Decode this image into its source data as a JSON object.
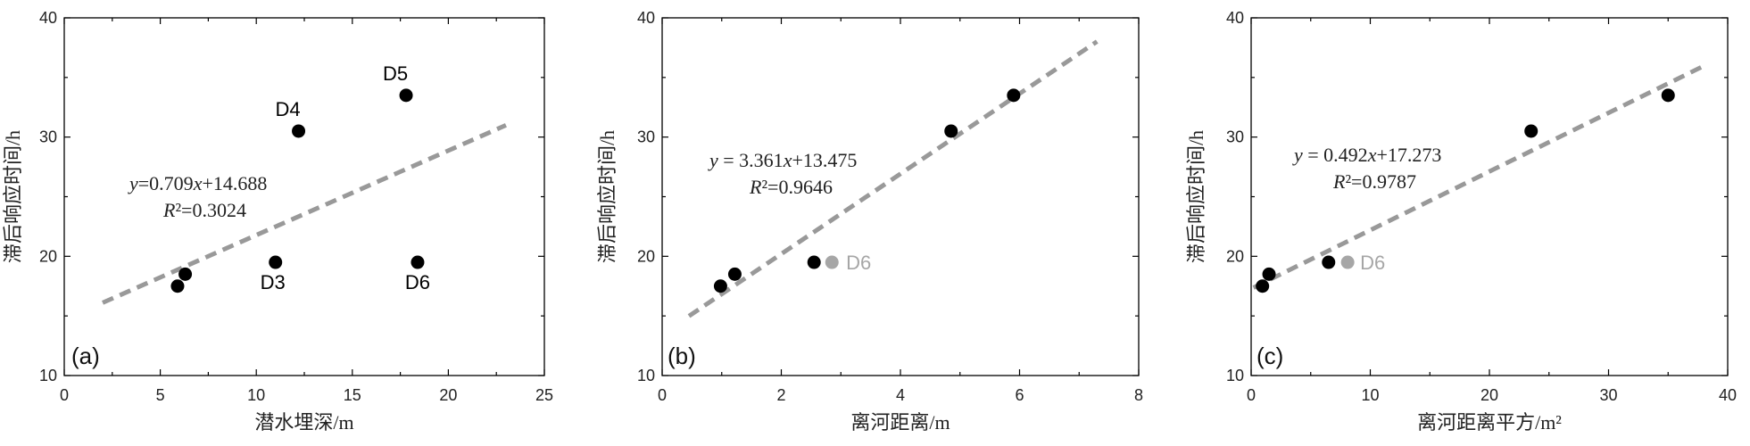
{
  "chart_data": [
    {
      "type": "scatter",
      "panel_label": "(a)",
      "xlabel": "潜水埋深/m",
      "ylabel": "滞后响应时间/h",
      "xlim": [
        0,
        25
      ],
      "ylim": [
        10,
        40
      ],
      "xticks": [
        0,
        5,
        10,
        15,
        20,
        25
      ],
      "yticks": [
        10,
        20,
        30,
        40
      ],
      "points": [
        {
          "x": 5.9,
          "y": 17.5,
          "label": "",
          "color": "#000000"
        },
        {
          "x": 6.3,
          "y": 18.5,
          "label": "",
          "color": "#000000"
        },
        {
          "x": 11.0,
          "y": 19.5,
          "label": "D3",
          "color": "#000000"
        },
        {
          "x": 12.2,
          "y": 30.5,
          "label": "D4",
          "color": "#000000"
        },
        {
          "x": 17.8,
          "y": 33.5,
          "label": "D5",
          "color": "#000000"
        },
        {
          "x": 18.4,
          "y": 19.5,
          "label": "D6",
          "color": "#000000"
        }
      ],
      "fit": {
        "slope": 0.709,
        "intercept": 14.688,
        "x_range": [
          2,
          23
        ]
      },
      "equation": {
        "y_var": "y",
        "eq_rest": "=0.709",
        "x_var": "x",
        "eq_tail": "+14.688",
        "r_var": "R",
        "r_rest": "²=0.3024"
      }
    },
    {
      "type": "scatter",
      "panel_label": "(b)",
      "xlabel": "离河距离/m",
      "ylabel": "滞后响应时间/h",
      "xlim": [
        0,
        8
      ],
      "ylim": [
        10,
        40
      ],
      "xticks": [
        0,
        2,
        4,
        6,
        8
      ],
      "yticks": [
        10,
        20,
        30,
        40
      ],
      "points": [
        {
          "x": 0.98,
          "y": 17.5,
          "label": "",
          "color": "#000000"
        },
        {
          "x": 1.22,
          "y": 18.5,
          "label": "",
          "color": "#000000"
        },
        {
          "x": 2.55,
          "y": 19.5,
          "label": "",
          "color": "#000000"
        },
        {
          "x": 2.85,
          "y": 19.5,
          "label": "D6",
          "color": "#a6a6a6"
        },
        {
          "x": 4.85,
          "y": 30.5,
          "label": "",
          "color": "#000000"
        },
        {
          "x": 5.9,
          "y": 33.5,
          "label": "",
          "color": "#000000"
        }
      ],
      "fit": {
        "slope": 3.361,
        "intercept": 13.475,
        "x_range": [
          0.45,
          7.3
        ]
      },
      "equation": {
        "y_var": "y",
        "eq_rest": " = 3.361",
        "x_var": "x",
        "eq_tail": "+13.475",
        "r_var": "R",
        "r_rest": "²=0.9646"
      }
    },
    {
      "type": "scatter",
      "panel_label": "(c)",
      "xlabel": "离河距离平方/m²",
      "ylabel": "滞后响应时间/h",
      "xlim": [
        0,
        40
      ],
      "ylim": [
        10,
        40
      ],
      "xticks": [
        0,
        10,
        20,
        30,
        40
      ],
      "yticks": [
        10,
        20,
        30,
        40
      ],
      "points": [
        {
          "x": 0.95,
          "y": 17.5,
          "label": "",
          "color": "#000000"
        },
        {
          "x": 1.5,
          "y": 18.5,
          "label": "",
          "color": "#000000"
        },
        {
          "x": 6.5,
          "y": 19.5,
          "label": "",
          "color": "#000000"
        },
        {
          "x": 8.1,
          "y": 19.5,
          "label": "D6",
          "color": "#a6a6a6"
        },
        {
          "x": 23.5,
          "y": 30.5,
          "label": "",
          "color": "#000000"
        },
        {
          "x": 35.0,
          "y": 33.5,
          "label": "",
          "color": "#000000"
        }
      ],
      "fit": {
        "slope": 0.492,
        "intercept": 17.273,
        "x_range": [
          0.2,
          38
        ]
      },
      "equation": {
        "y_var": "y",
        "eq_rest": " = 0.492",
        "x_var": "x",
        "eq_tail": "+17.273",
        "r_var": "R",
        "r_rest": "²=0.9787"
      }
    }
  ]
}
